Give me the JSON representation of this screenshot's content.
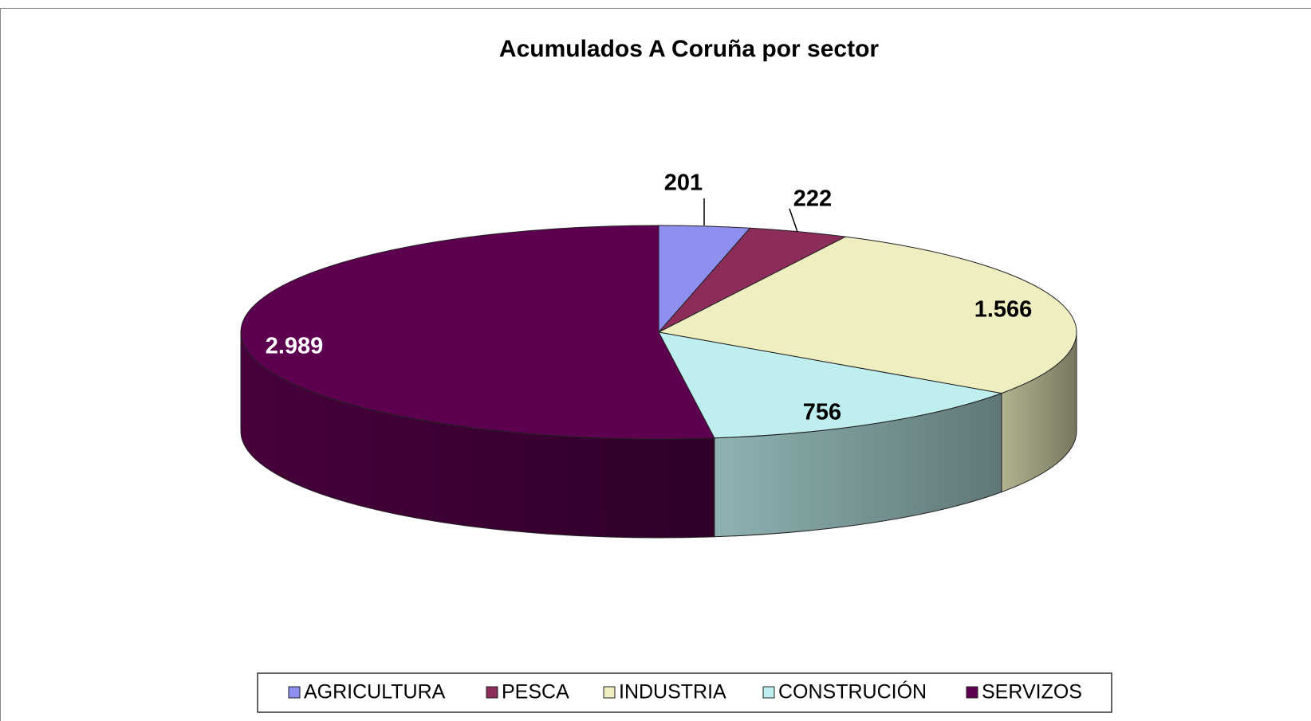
{
  "chart_data": {
    "type": "pie3d",
    "title": "Acumulados A Coruña por sector",
    "categories": [
      "AGRICULTURA",
      "PESCA",
      "INDUSTRIA",
      "CONSTRUCIÓN",
      "SERVIZOS"
    ],
    "values": [
      201,
      222,
      1566,
      756,
      2989
    ],
    "value_labels": [
      "201",
      "222",
      "1.566",
      "756",
      "2.989"
    ],
    "colors": [
      "#8f8fef",
      "#8b2c5a",
      "#eeeec0",
      "#bfeeee",
      "#5e0050"
    ],
    "legend": "bottom"
  }
}
